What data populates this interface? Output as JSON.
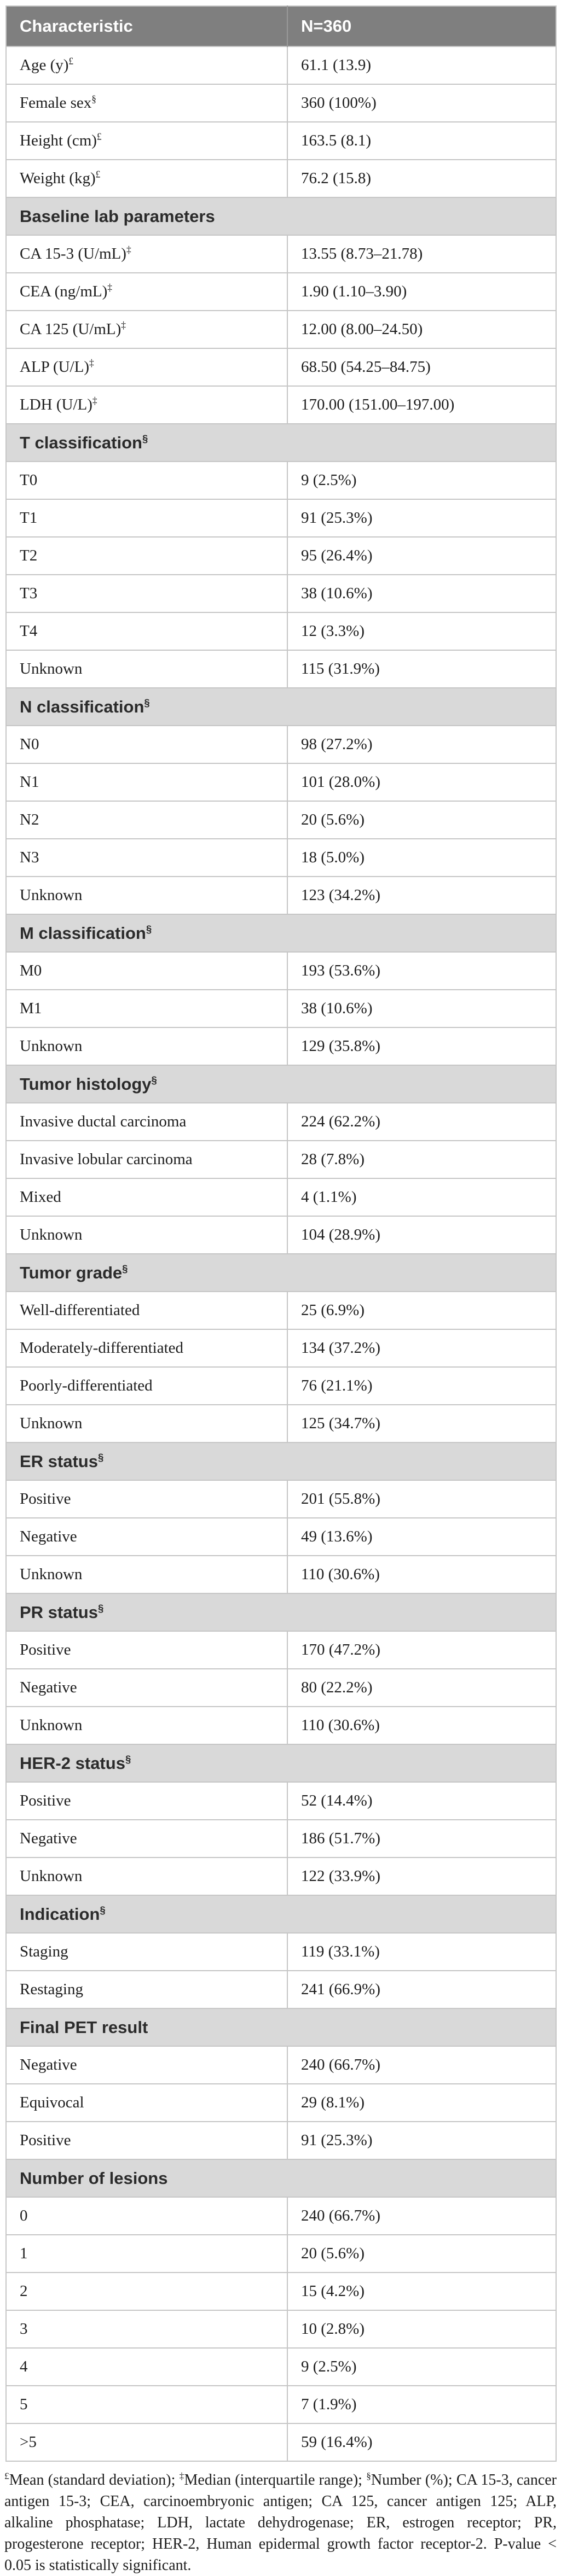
{
  "colors": {
    "header_bg": "#7f7f7f",
    "header_text": "#ffffff",
    "section_bg": "#d9d9d9",
    "border": "#c6c6c6",
    "text": "#1d1d1d"
  },
  "table": {
    "header": {
      "characteristic": "Characteristic",
      "n": "N=360"
    },
    "rows": [
      {
        "type": "data",
        "label": "Age (y)",
        "sup": "£",
        "value": "61.1 (13.9)"
      },
      {
        "type": "data",
        "label": "Female sex",
        "sup": "§",
        "value": "360 (100%)"
      },
      {
        "type": "data",
        "label": "Height (cm)",
        "sup": "£",
        "value": "163.5 (8.1)"
      },
      {
        "type": "data",
        "label": "Weight (kg)",
        "sup": "£",
        "value": "76.2 (15.8)"
      },
      {
        "type": "section",
        "label": "Baseline lab parameters",
        "sup": ""
      },
      {
        "type": "data",
        "label": "CA 15-3 (U/mL)",
        "sup": "‡",
        "value": "13.55 (8.73–21.78)"
      },
      {
        "type": "data",
        "label": "CEA (ng/mL)",
        "sup": "‡",
        "value": "1.90 (1.10–3.90)"
      },
      {
        "type": "data",
        "label": "CA 125 (U/mL)",
        "sup": "‡",
        "value": "12.00 (8.00–24.50)"
      },
      {
        "type": "data",
        "label": "ALP (U/L)",
        "sup": "‡",
        "value": "68.50 (54.25–84.75)"
      },
      {
        "type": "data",
        "label": "LDH (U/L)",
        "sup": "‡",
        "value": "170.00 (151.00–197.00)"
      },
      {
        "type": "section",
        "label": "T classification",
        "sup": "§"
      },
      {
        "type": "data",
        "label": "T0",
        "sup": "",
        "value": "9 (2.5%)"
      },
      {
        "type": "data",
        "label": "T1",
        "sup": "",
        "value": "91 (25.3%)"
      },
      {
        "type": "data",
        "label": "T2",
        "sup": "",
        "value": "95 (26.4%)"
      },
      {
        "type": "data",
        "label": "T3",
        "sup": "",
        "value": "38 (10.6%)"
      },
      {
        "type": "data",
        "label": "T4",
        "sup": "",
        "value": "12 (3.3%)"
      },
      {
        "type": "data",
        "label": "Unknown",
        "sup": "",
        "value": "115 (31.9%)"
      },
      {
        "type": "section",
        "label": "N classification",
        "sup": "§"
      },
      {
        "type": "data",
        "label": "N0",
        "sup": "",
        "value": "98 (27.2%)"
      },
      {
        "type": "data",
        "label": "N1",
        "sup": "",
        "value": "101 (28.0%)"
      },
      {
        "type": "data",
        "label": "N2",
        "sup": "",
        "value": "20 (5.6%)"
      },
      {
        "type": "data",
        "label": "N3",
        "sup": "",
        "value": "18 (5.0%)"
      },
      {
        "type": "data",
        "label": "Unknown",
        "sup": "",
        "value": "123 (34.2%)"
      },
      {
        "type": "section",
        "label": "M classification",
        "sup": "§"
      },
      {
        "type": "data",
        "label": "M0",
        "sup": "",
        "value": "193 (53.6%)"
      },
      {
        "type": "data",
        "label": "M1",
        "sup": "",
        "value": "38 (10.6%)"
      },
      {
        "type": "data",
        "label": "Unknown",
        "sup": "",
        "value": "129 (35.8%)"
      },
      {
        "type": "section",
        "label": "Tumor histology",
        "sup": "§"
      },
      {
        "type": "data",
        "label": "Invasive ductal carcinoma",
        "sup": "",
        "value": "224 (62.2%)"
      },
      {
        "type": "data",
        "label": "Invasive lobular carcinoma",
        "sup": "",
        "value": "28 (7.8%)"
      },
      {
        "type": "data",
        "label": "Mixed",
        "sup": "",
        "value": "4 (1.1%)"
      },
      {
        "type": "data",
        "label": "Unknown",
        "sup": "",
        "value": "104 (28.9%)"
      },
      {
        "type": "section",
        "label": "Tumor grade",
        "sup": "§"
      },
      {
        "type": "data",
        "label": "Well-differentiated",
        "sup": "",
        "value": "25 (6.9%)"
      },
      {
        "type": "data",
        "label": "Moderately-differentiated",
        "sup": "",
        "value": "134 (37.2%)"
      },
      {
        "type": "data",
        "label": "Poorly-differentiated",
        "sup": "",
        "value": "76 (21.1%)"
      },
      {
        "type": "data",
        "label": "Unknown",
        "sup": "",
        "value": "125 (34.7%)"
      },
      {
        "type": "section",
        "label": "ER status",
        "sup": "§"
      },
      {
        "type": "data",
        "label": "Positive",
        "sup": "",
        "value": "201 (55.8%)"
      },
      {
        "type": "data",
        "label": "Negative",
        "sup": "",
        "value": "49 (13.6%)"
      },
      {
        "type": "data",
        "label": "Unknown",
        "sup": "",
        "value": "110 (30.6%)"
      },
      {
        "type": "section",
        "label": "PR status",
        "sup": "§"
      },
      {
        "type": "data",
        "label": "Positive",
        "sup": "",
        "value": "170 (47.2%)"
      },
      {
        "type": "data",
        "label": "Negative",
        "sup": "",
        "value": "80 (22.2%)"
      },
      {
        "type": "data",
        "label": "Unknown",
        "sup": "",
        "value": "110 (30.6%)"
      },
      {
        "type": "section",
        "label": "HER-2 status",
        "sup": "§"
      },
      {
        "type": "data",
        "label": "Positive",
        "sup": "",
        "value": "52 (14.4%)"
      },
      {
        "type": "data",
        "label": "Negative",
        "sup": "",
        "value": "186 (51.7%)"
      },
      {
        "type": "data",
        "label": "Unknown",
        "sup": "",
        "value": "122 (33.9%)"
      },
      {
        "type": "section",
        "label": "Indication",
        "sup": "§"
      },
      {
        "type": "data",
        "label": "Staging",
        "sup": "",
        "value": "119 (33.1%)"
      },
      {
        "type": "data",
        "label": "Restaging",
        "sup": "",
        "value": "241 (66.9%)"
      },
      {
        "type": "section",
        "label": "Final PET result",
        "sup": ""
      },
      {
        "type": "data",
        "label": "Negative",
        "sup": "",
        "value": "240 (66.7%)"
      },
      {
        "type": "data",
        "label": "Equivocal",
        "sup": "",
        "value": "29 (8.1%)"
      },
      {
        "type": "data",
        "label": "Positive",
        "sup": "",
        "value": "91 (25.3%)"
      },
      {
        "type": "section",
        "label": "Number of lesions",
        "sup": ""
      },
      {
        "type": "data",
        "label": "0",
        "sup": "",
        "value": "240 (66.7%)"
      },
      {
        "type": "data",
        "label": "1",
        "sup": "",
        "value": "20 (5.6%)"
      },
      {
        "type": "data",
        "label": "2",
        "sup": "",
        "value": "15 (4.2%)"
      },
      {
        "type": "data",
        "label": "3",
        "sup": "",
        "value": "10 (2.8%)"
      },
      {
        "type": "data",
        "label": "4",
        "sup": "",
        "value": "9 (2.5%)"
      },
      {
        "type": "data",
        "label": "5",
        "sup": "",
        "value": "7 (1.9%)"
      },
      {
        "type": "data",
        "label": ">5",
        "sup": "",
        "value": "59 (16.4%)"
      }
    ]
  },
  "footnote": {
    "segments": [
      {
        "sup": "£",
        "text": "Mean (standard deviation); "
      },
      {
        "sup": "‡",
        "text": "Median (interquartile range); "
      },
      {
        "sup": "§",
        "text": "Number (%); CA 15-3, cancer antigen 15-3; CEA, carcinoembryonic antigen; CA 125, cancer antigen 125; ALP, alkaline phosphatase; LDH, lactate dehydrogenase; ER, estrogen receptor; PR, progesterone receptor; HER-2, Human epidermal growth factor receptor-2. P-value < 0.05 is statistically significant."
      }
    ]
  }
}
